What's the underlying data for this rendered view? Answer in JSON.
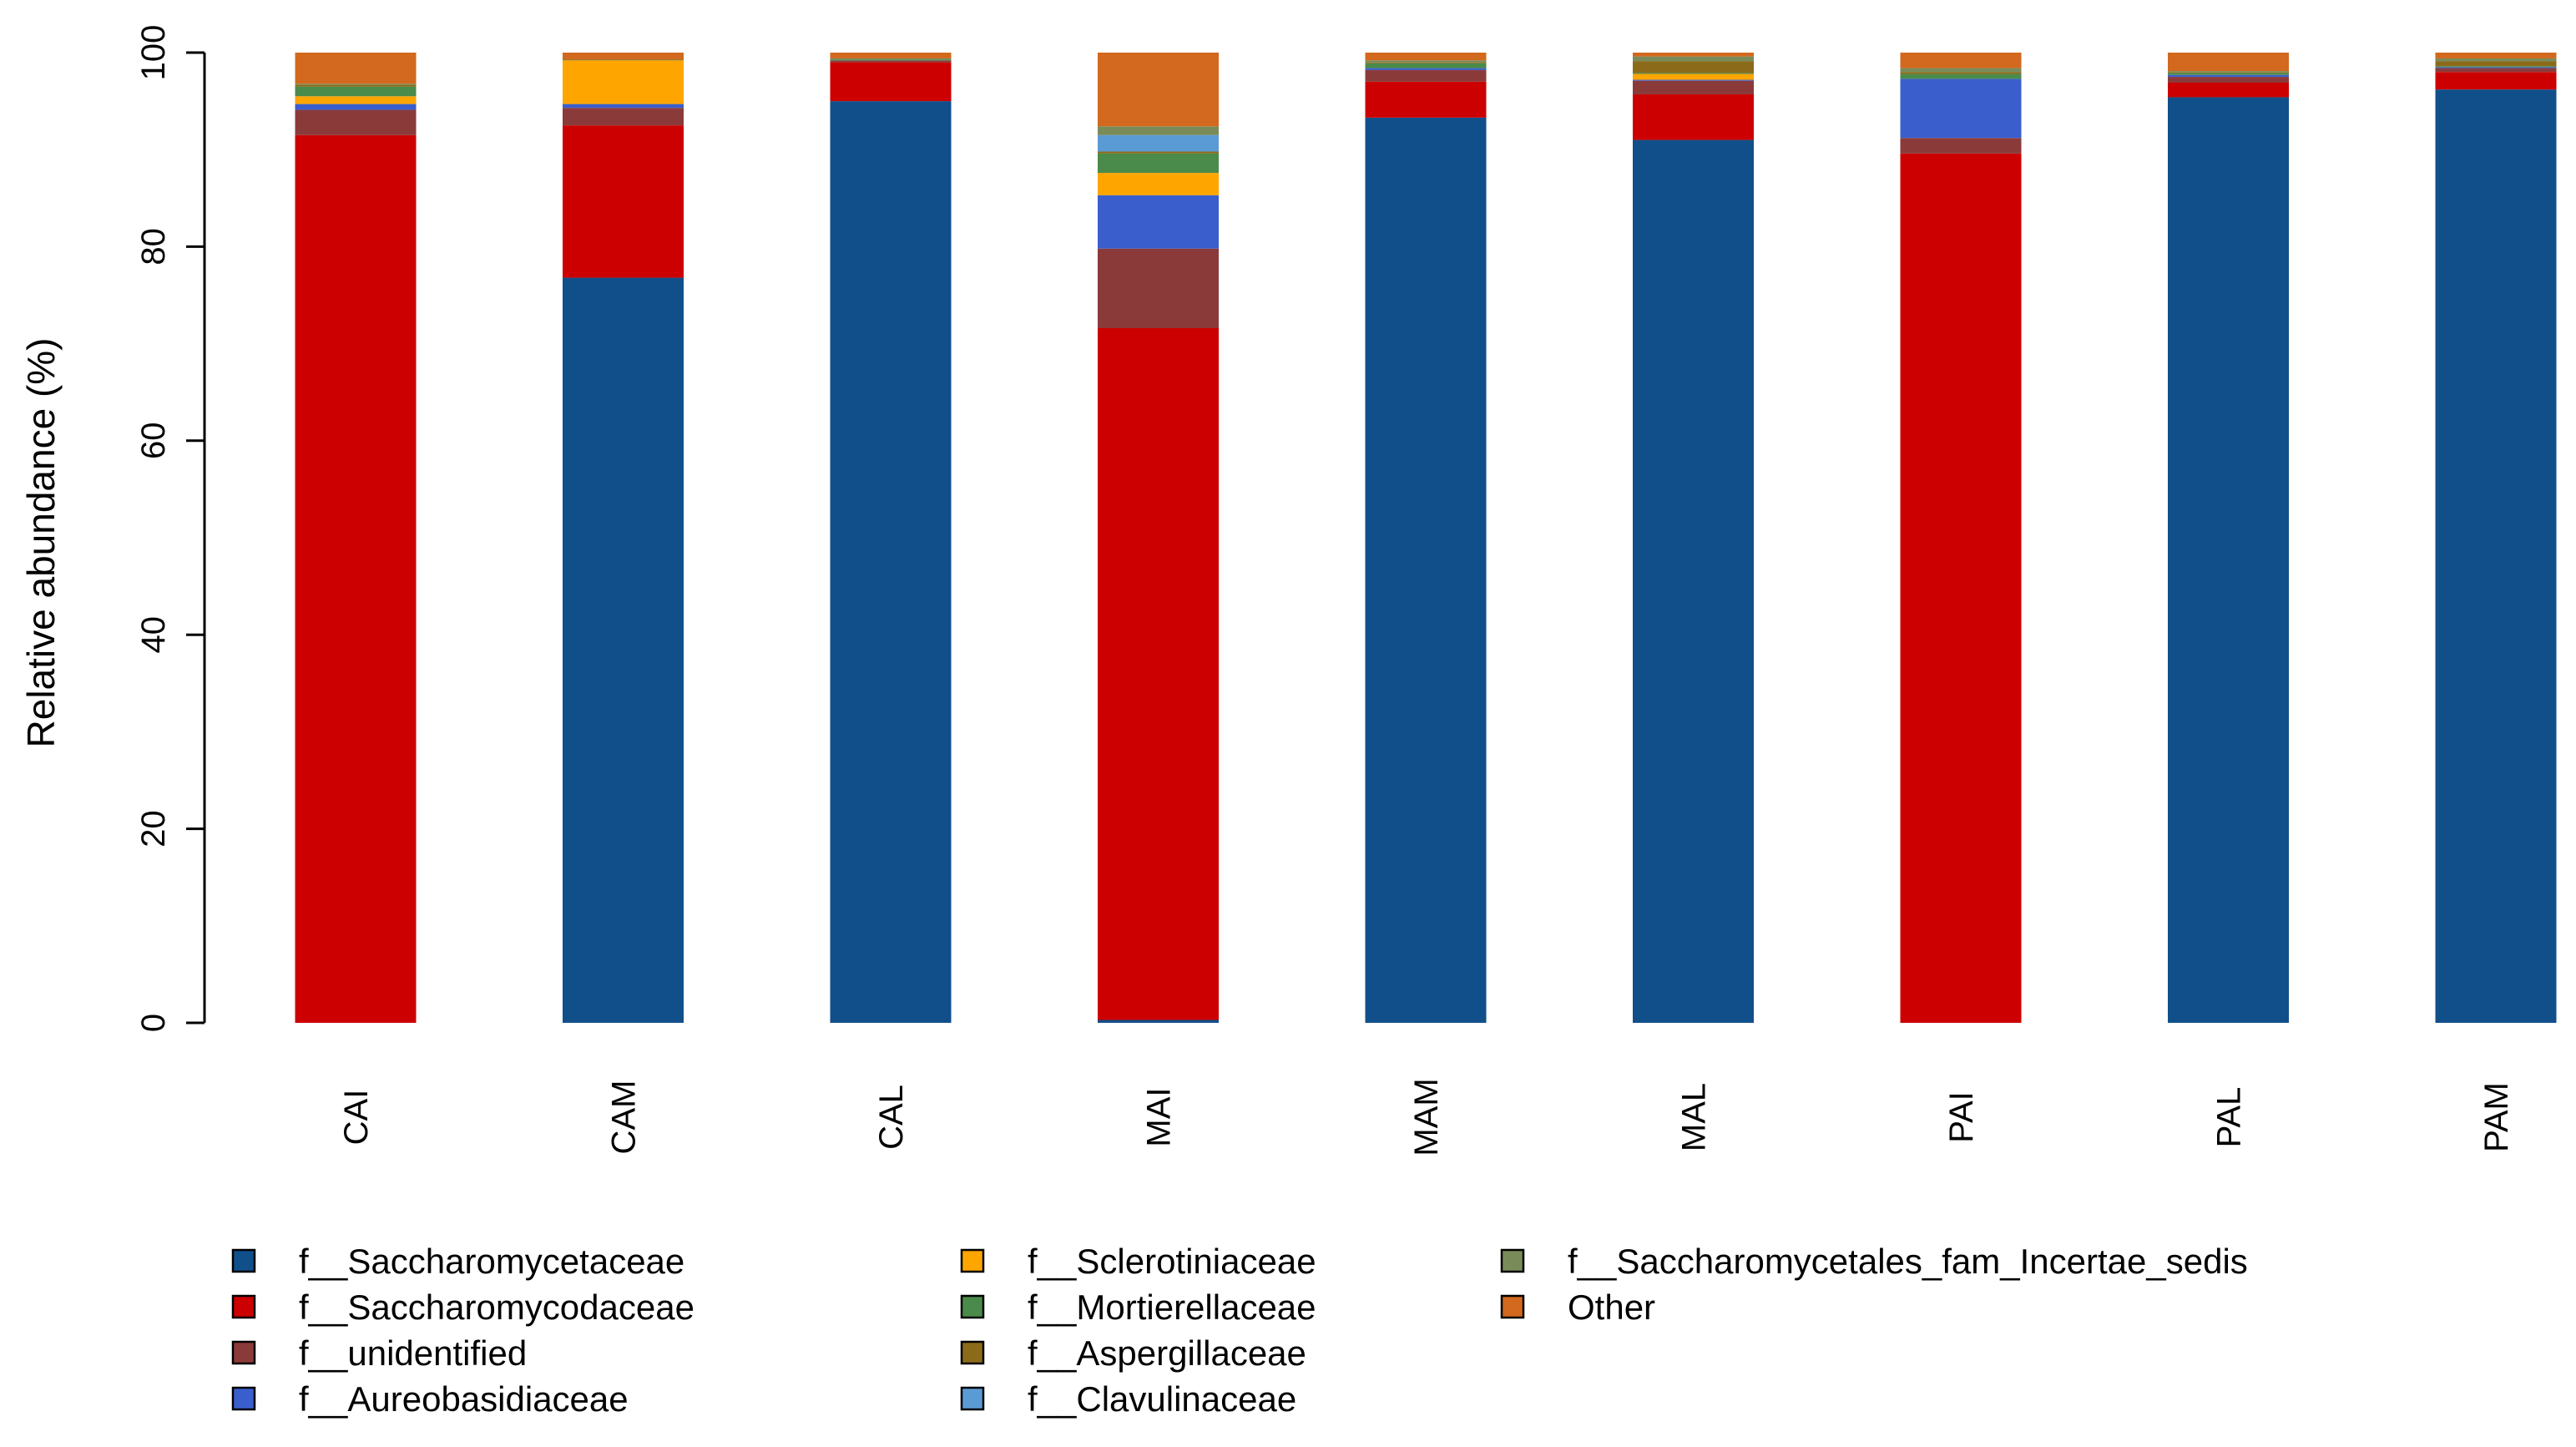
{
  "chart_data": {
    "type": "stacked-bar",
    "title": "",
    "xlabel": "",
    "ylabel": "Relative abundance (%)",
    "ylim": [
      0,
      100
    ],
    "yticks": [
      0,
      20,
      40,
      60,
      80,
      100
    ],
    "grid": false,
    "legend_position": "bottom",
    "categories": [
      "CAI",
      "CAM",
      "CAL",
      "MAI",
      "MAM",
      "MAL",
      "PAI",
      "PAL",
      "PAM"
    ],
    "series": [
      {
        "name": "f__Saccharomycetaceae",
        "color": "#114F8A",
        "values": [
          0.0,
          76.8,
          95.0,
          0.3,
          93.3,
          91.0,
          0.0,
          95.4,
          96.2
        ]
      },
      {
        "name": "f__Saccharomycodaceae",
        "color": "#CC0000",
        "values": [
          91.5,
          15.7,
          4.0,
          71.3,
          3.7,
          4.7,
          89.6,
          1.5,
          1.8
        ]
      },
      {
        "name": "f__unidentified",
        "color": "#8B3A3A",
        "values": [
          2.6,
          1.8,
          0.2,
          8.2,
          1.2,
          1.4,
          1.6,
          0.6,
          0.4
        ]
      },
      {
        "name": "f__Aureobasidiaceae",
        "color": "#3A5FCD",
        "values": [
          0.6,
          0.4,
          0.0,
          5.5,
          0.2,
          0.1,
          6.1,
          0.2,
          0.1
        ]
      },
      {
        "name": "f__Sclerotiniaceae",
        "color": "#FFA500",
        "values": [
          0.8,
          4.5,
          0.0,
          2.3,
          0.0,
          0.6,
          0.0,
          0.0,
          0.0
        ]
      },
      {
        "name": "f__Mortierellaceae",
        "color": "#4A8A4A",
        "values": [
          1.0,
          0.0,
          0.1,
          2.0,
          0.5,
          0.1,
          0.5,
          0.2,
          0.1
        ]
      },
      {
        "name": "f__Aspergillaceae",
        "color": "#8B6B1A",
        "values": [
          0.2,
          0.1,
          0.0,
          0.2,
          0.1,
          1.2,
          0.2,
          0.1,
          0.5
        ]
      },
      {
        "name": "f__Clavulinaceae",
        "color": "#5B9BD5",
        "values": [
          0.0,
          0.0,
          0.0,
          1.7,
          0.0,
          0.0,
          0.0,
          0.0,
          0.0
        ]
      },
      {
        "name": "f__Saccharomycetales_fam_Incertae_sedis",
        "color": "#7A8B5A",
        "values": [
          0.1,
          0.0,
          0.1,
          0.9,
          0.2,
          0.5,
          0.4,
          0.1,
          0.3
        ]
      },
      {
        "name": "Other",
        "color": "#D2691E",
        "values": [
          3.2,
          0.7,
          0.6,
          7.6,
          0.8,
          0.4,
          1.6,
          1.9,
          0.6
        ]
      }
    ],
    "legend_columns": [
      [
        "f__Saccharomycetaceae",
        "f__Saccharomycodaceae",
        "f__unidentified",
        "f__Aureobasidiaceae"
      ],
      [
        "f__Sclerotiniaceae",
        "f__Mortierellaceae",
        "f__Aspergillaceae",
        "f__Clavulinaceae"
      ],
      [
        "f__Saccharomycetales_fam_Incertae_sedis",
        "Other"
      ]
    ]
  }
}
